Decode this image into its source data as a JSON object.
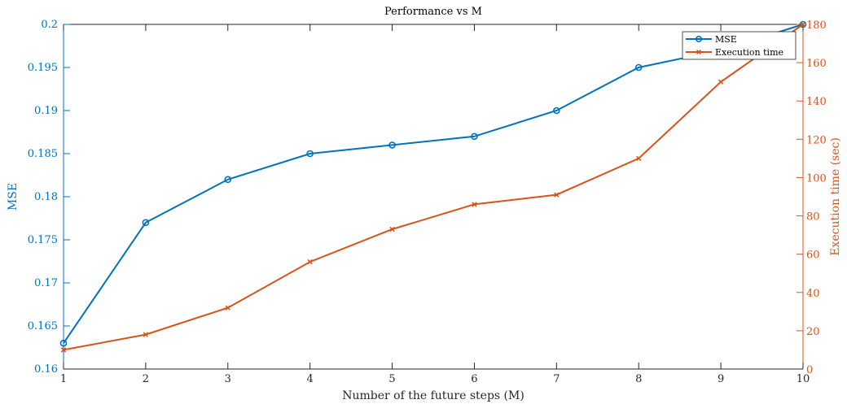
{
  "chart_data": {
    "type": "line",
    "title": "Performance vs M",
    "xlabel": "Number of the future steps (M)",
    "ylabel_left": "MSE",
    "ylabel_right": "Execution time (sec)",
    "x": [
      1,
      2,
      3,
      4,
      5,
      6,
      7,
      8,
      9,
      10
    ],
    "xlim": [
      1,
      10
    ],
    "ylim_left": [
      0.16,
      0.2
    ],
    "ylim_right": [
      0,
      180
    ],
    "x_ticks": [
      "1",
      "2",
      "3",
      "4",
      "5",
      "6",
      "7",
      "8",
      "9",
      "10"
    ],
    "y_ticks_left": [
      "0.16",
      "0.165",
      "0.17",
      "0.175",
      "0.18",
      "0.185",
      "0.19",
      "0.195",
      "0.2"
    ],
    "y_ticks_right": [
      "0",
      "20",
      "40",
      "60",
      "80",
      "100",
      "120",
      "140",
      "160",
      "180"
    ],
    "grid": false,
    "legend_position": "top-right",
    "series": [
      {
        "name": "MSE",
        "axis": "left",
        "marker": "circle",
        "color": "#0072BD",
        "values": [
          0.163,
          0.177,
          0.182,
          0.185,
          0.186,
          0.187,
          0.19,
          0.195,
          0.197,
          0.2
        ]
      },
      {
        "name": "Execution time",
        "axis": "right",
        "marker": "x",
        "color": "#D95319",
        "values": [
          10,
          18,
          32,
          56,
          73,
          86,
          91,
          110,
          150,
          180
        ]
      }
    ]
  }
}
